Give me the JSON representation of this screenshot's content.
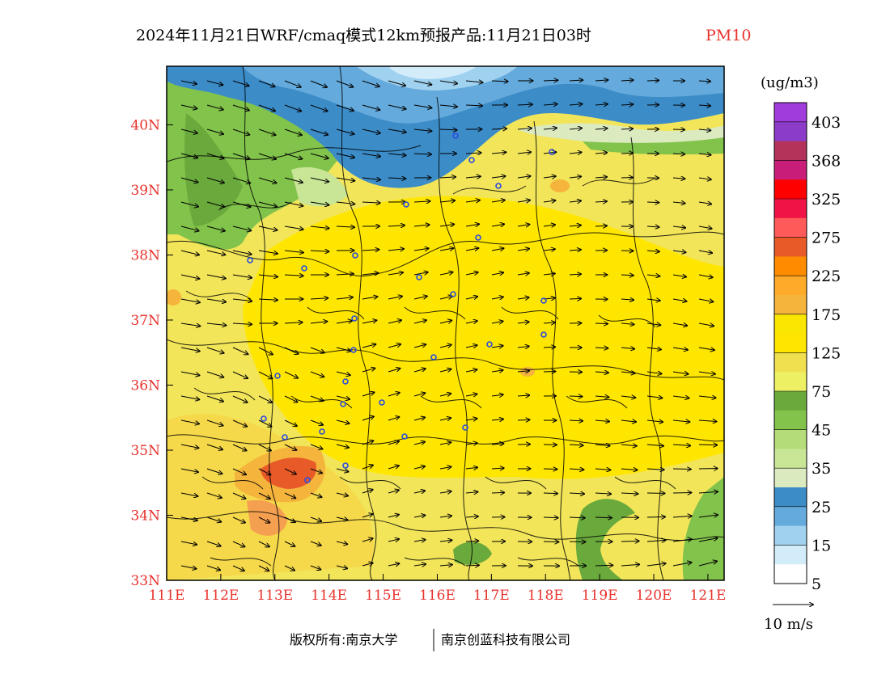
{
  "title": {
    "main": "2024年11月21日WRF/cmaq模式12km预报产品:11月21日03时",
    "species": "PM10"
  },
  "map": {
    "lon_labels": [
      "111E",
      "112E",
      "113E",
      "114E",
      "115E",
      "116E",
      "117E",
      "118E",
      "119E",
      "120E",
      "121E"
    ],
    "lat_labels": [
      "33N",
      "34N",
      "35N",
      "36N",
      "37N",
      "38N",
      "39N",
      "40N"
    ],
    "lon_range": [
      111,
      121.3
    ],
    "lat_range": [
      33,
      40.9
    ]
  },
  "legend": {
    "unit": "(ug/m3)",
    "labels": [
      "403",
      "368",
      "325",
      "275",
      "225",
      "175",
      "125",
      "75",
      "45",
      "35",
      "25",
      "15",
      "5"
    ],
    "colors": [
      "#a03cdc",
      "#8b3cc8",
      "#b4335a",
      "#c81e7a",
      "#ff0000",
      "#f01446",
      "#ff5a5a",
      "#e85a28",
      "#ff8c00",
      "#ffaa28",
      "#f5b43c",
      "#fae600",
      "#ffe600",
      "#f0e050",
      "#eef064",
      "#6aaa3c",
      "#82c34b",
      "#b4dc78",
      "#c8e696",
      "#dceac0",
      "#3c8cc8",
      "#64aadc",
      "#a0d2f0",
      "#d2ecfa",
      "#ffffff"
    ]
  },
  "vector_ref": {
    "label": "10 m/s"
  },
  "copyright": {
    "left": "版权所有:南京大学",
    "right": "南京创蓝科技有限公司"
  }
}
